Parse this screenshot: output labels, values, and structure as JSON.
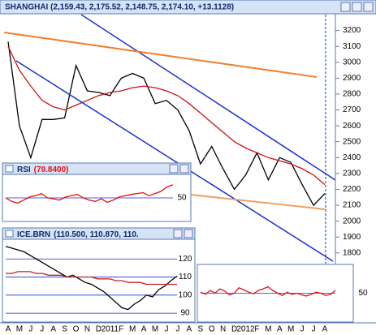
{
  "chart_data": [
    {
      "type": "line",
      "title": "SHANGHAI (2,159.43, 2,175.52, 2,148.75, 2,174.10, +13.1128)",
      "categories": [
        "A",
        "M",
        "J",
        "J",
        "A",
        "S",
        "O",
        "N",
        "D",
        "2011",
        "F",
        "M",
        "A",
        "M",
        "J",
        "J",
        "A",
        "S",
        "O",
        "N",
        "D",
        "2012",
        "F",
        "M",
        "A",
        "M",
        "J",
        "J",
        "A"
      ],
      "series": [
        {
          "color": "#000000",
          "values": [
            3130,
            2600,
            2400,
            2640,
            2640,
            2650,
            2980,
            2820,
            2810,
            2790,
            2900,
            2930,
            2900,
            2740,
            2760,
            2700,
            2570,
            2360,
            2470,
            2330,
            2200,
            2290,
            2430,
            2260,
            2400,
            2370,
            2230,
            2100,
            2174
          ]
        },
        {
          "color": "#d01010",
          "values": [
            3100,
            2950,
            2850,
            2760,
            2720,
            2700,
            2730,
            2760,
            2790,
            2810,
            2820,
            2840,
            2850,
            2840,
            2820,
            2790,
            2740,
            2680,
            2620,
            2560,
            2500,
            2460,
            2430,
            2400,
            2380,
            2360,
            2330,
            2290,
            2230
          ]
        }
      ],
      "ylim": [
        1360,
        3300
      ],
      "yticks": [
        1800,
        1900,
        2000,
        2100,
        2200,
        2300,
        2400,
        2500,
        2600,
        2700,
        2800,
        2900,
        3000,
        3100,
        3200
      ]
    },
    {
      "type": "line",
      "title": "RSI",
      "title_value": "(79.8400)",
      "series": [
        {
          "color": "#e01010",
          "values": [
            50,
            42,
            38,
            45,
            52,
            55,
            60,
            50,
            48,
            45,
            52,
            55,
            58,
            50,
            45,
            42,
            48,
            40,
            45,
            52,
            55,
            58,
            60,
            62,
            55,
            60,
            65,
            75,
            79.84
          ]
        }
      ],
      "ylim": [
        0,
        100
      ],
      "yticks": [
        50
      ]
    },
    {
      "type": "line",
      "title": "ICE.BRN",
      "title_value": "(110.500, 110.870, 110.",
      "series": [
        {
          "color": "#000000",
          "values": [
            127,
            126,
            125,
            124,
            122,
            120,
            118,
            116,
            114,
            112,
            110,
            111,
            109,
            107,
            106,
            104,
            102,
            99,
            96,
            93,
            92,
            95,
            97,
            100,
            99,
            103,
            105,
            108,
            110.5
          ]
        },
        {
          "color": "#c02020",
          "values": [
            112,
            112,
            113,
            113,
            113,
            112,
            112,
            111,
            111,
            111,
            110,
            110,
            110,
            110,
            110,
            109,
            109,
            109,
            108,
            108,
            107,
            107,
            107,
            106,
            106,
            106,
            106,
            106,
            106
          ]
        }
      ],
      "ylim": [
        86,
        130
      ],
      "yticks": [
        90,
        100,
        110,
        120
      ]
    },
    {
      "type": "line",
      "series": [
        {
          "color": "#e01010",
          "values": [
            52,
            48,
            55,
            50,
            58,
            54,
            47,
            50,
            60,
            56,
            52,
            49,
            55,
            58,
            62,
            55,
            50,
            46,
            52,
            48,
            50,
            47,
            45,
            48,
            52,
            50,
            46,
            48,
            55
          ]
        }
      ],
      "ylim": [
        0,
        100
      ],
      "yticks": [
        50
      ]
    }
  ]
}
